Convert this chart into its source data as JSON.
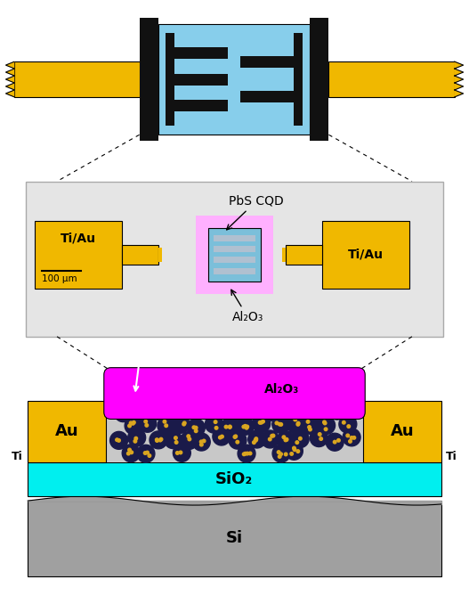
{
  "bg_color": "#ffffff",
  "gold_color": "#F0B800",
  "black_color": "#111111",
  "blue_light": "#87CEEB",
  "pink_color": "#FF00FF",
  "pink_light": "#FFB0FF",
  "cyan_color": "#00EFEF",
  "gray_si": "#A0A0A0",
  "gray_panel": "#E5E5E5",
  "brown_ti": "#9B7355",
  "cqd_dark": "#1A1A4A",
  "cqd_gold": "#DAA520",
  "label_pbs": "PbS CQD",
  "label_al2o3": "Al₂O₃",
  "label_tiau": "Ti/Au",
  "label_scale": "100 μm",
  "label_sio2": "SiO₂",
  "label_si": "Si",
  "label_au": "Au",
  "label_ti": "Ti"
}
